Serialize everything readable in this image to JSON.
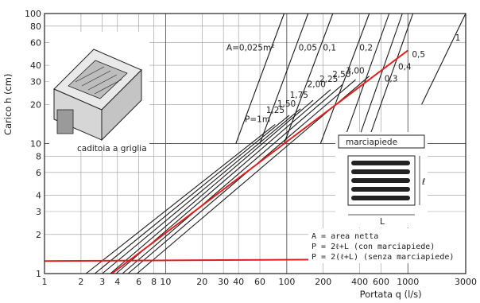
{
  "chart_data": {
    "type": "line",
    "title": "",
    "xlabel": "Portata q (l/s)",
    "ylabel": "Carico h (cm)",
    "x_scale": "log",
    "y_scale": "log",
    "xlim": [
      1,
      3000
    ],
    "ylim": [
      1,
      100
    ],
    "grid": true,
    "x_ticks": [
      1,
      2,
      3,
      4,
      6,
      8,
      10,
      20,
      30,
      40,
      60,
      100,
      200,
      400,
      600,
      1000,
      3000
    ],
    "x_tick_labels": [
      "1",
      "2",
      "3",
      "4",
      "6",
      "8",
      "10",
      "20",
      "30",
      "40",
      "60",
      "100",
      "200",
      "400",
      "600",
      "1000",
      "3000"
    ],
    "y_ticks": [
      1,
      2,
      3,
      4,
      6,
      8,
      10,
      20,
      30,
      40,
      60,
      80,
      100
    ],
    "y_tick_labels": [
      "1",
      "2",
      "3",
      "4",
      "6",
      "8",
      "10",
      "20",
      "30",
      "40",
      "60",
      "80",
      "100"
    ],
    "perimeter_series": [
      {
        "name": "P=1m",
        "points": [
          [
            2.2,
            1.0
          ],
          [
            80,
            14.0
          ]
        ]
      },
      {
        "name": "1,25",
        "points": [
          [
            2.6,
            1.0
          ],
          [
            105,
            16.5
          ]
        ]
      },
      {
        "name": "1,50",
        "points": [
          [
            3.0,
            1.0
          ],
          [
            130,
            18.5
          ]
        ]
      },
      {
        "name": "1,75",
        "points": [
          [
            3.5,
            1.0
          ],
          [
            165,
            21.5
          ]
        ]
      },
      {
        "name": "2,00",
        "points": [
          [
            3.9,
            1.0
          ],
          [
            230,
            26.0
          ]
        ]
      },
      {
        "name": "2,25",
        "points": [
          [
            4.4,
            1.0
          ],
          [
            290,
            28.5
          ]
        ]
      },
      {
        "name": "2,50",
        "points": [
          [
            4.9,
            1.0
          ],
          [
            370,
            31.0
          ]
        ]
      },
      {
        "name": "3,00",
        "points": [
          [
            5.8,
            1.0
          ],
          [
            480,
            33.0
          ]
        ]
      }
    ],
    "area_series": [
      {
        "name": "A=0,025m²",
        "points": [
          [
            38,
            10.0
          ],
          [
            95,
            100.0
          ]
        ]
      },
      {
        "name": "0,05",
        "points": [
          [
            60,
            10.0
          ],
          [
            150,
            100.0
          ]
        ]
      },
      {
        "name": "0,1",
        "points": [
          [
            95,
            10.0
          ],
          [
            240,
            100.0
          ]
        ]
      },
      {
        "name": "0,2",
        "points": [
          [
            190,
            10.0
          ],
          [
            480,
            100.0
          ]
        ]
      },
      {
        "name": "0,3",
        "points": [
          [
            290,
            10.0
          ],
          [
            700,
            100.0
          ]
        ]
      },
      {
        "name": "0,4",
        "points": [
          [
            380,
            10.0
          ],
          [
            900,
            100.0
          ]
        ]
      },
      {
        "name": "0,5",
        "points": [
          [
            460,
            10.0
          ],
          [
            1100,
            100.0
          ]
        ]
      },
      {
        "name": "1",
        "points": [
          [
            1300,
            20.0
          ],
          [
            3000,
            100.0
          ]
        ]
      }
    ],
    "highlight_lines": [
      {
        "color": "#e02020",
        "points": [
          [
            3.6,
            1.0
          ],
          [
            1000,
            52.0
          ]
        ]
      },
      {
        "color": "#e02020",
        "points": [
          [
            1,
            1.25
          ],
          [
            3000,
            1.3
          ]
        ]
      }
    ],
    "inset_labels": {
      "grate": "caditoia a griglia",
      "sidewalk": "marciapiede",
      "length": "L",
      "width": "ℓ"
    },
    "legend_lines": [
      "A = area netta",
      "P = 2ℓ+L (con marciapiede)",
      "P = 2(ℓ+L) (senza marciapiede)"
    ]
  }
}
